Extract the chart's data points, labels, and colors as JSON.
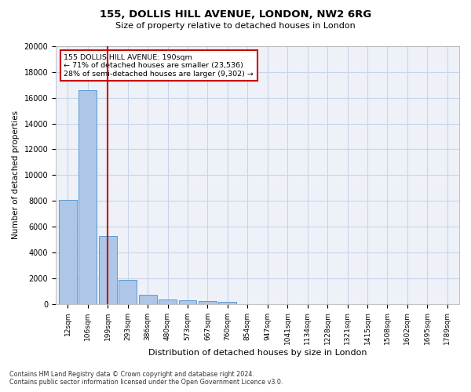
{
  "title_line1": "155, DOLLIS HILL AVENUE, LONDON, NW2 6RG",
  "title_line2": "Size of property relative to detached houses in London",
  "xlabel": "Distribution of detached houses by size in London",
  "ylabel": "Number of detached properties",
  "bar_values": [
    8100,
    16600,
    5300,
    1850,
    700,
    360,
    280,
    220,
    180,
    0,
    0,
    0,
    0,
    0,
    0,
    0,
    0,
    0,
    0,
    0
  ],
  "bar_labels": [
    "12sqm",
    "106sqm",
    "199sqm",
    "293sqm",
    "386sqm",
    "480sqm",
    "573sqm",
    "667sqm",
    "760sqm",
    "854sqm",
    "947sqm",
    "1041sqm",
    "1134sqm",
    "1228sqm",
    "1321sqm",
    "1415sqm",
    "1508sqm",
    "1602sqm",
    "1695sqm",
    "1789sqm"
  ],
  "bar_color": "#aec6e8",
  "bar_edge_color": "#5b9bd5",
  "vline_color": "#cc0000",
  "vline_position": 2.0,
  "ylim": [
    0,
    20000
  ],
  "yticks": [
    0,
    2000,
    4000,
    6000,
    8000,
    10000,
    12000,
    14000,
    16000,
    18000,
    20000
  ],
  "annotation_title": "155 DOLLIS HILL AVENUE: 190sqm",
  "annotation_line1": "← 71% of detached houses are smaller (23,536)",
  "annotation_line2": "28% of semi-detached houses are larger (9,302) →",
  "annotation_box_color": "#cc0000",
  "footer_line1": "Contains HM Land Registry data © Crown copyright and database right 2024.",
  "footer_line2": "Contains public sector information licensed under the Open Government Licence v3.0.",
  "grid_color": "#c8d4e8",
  "bg_color": "#eef2f8"
}
